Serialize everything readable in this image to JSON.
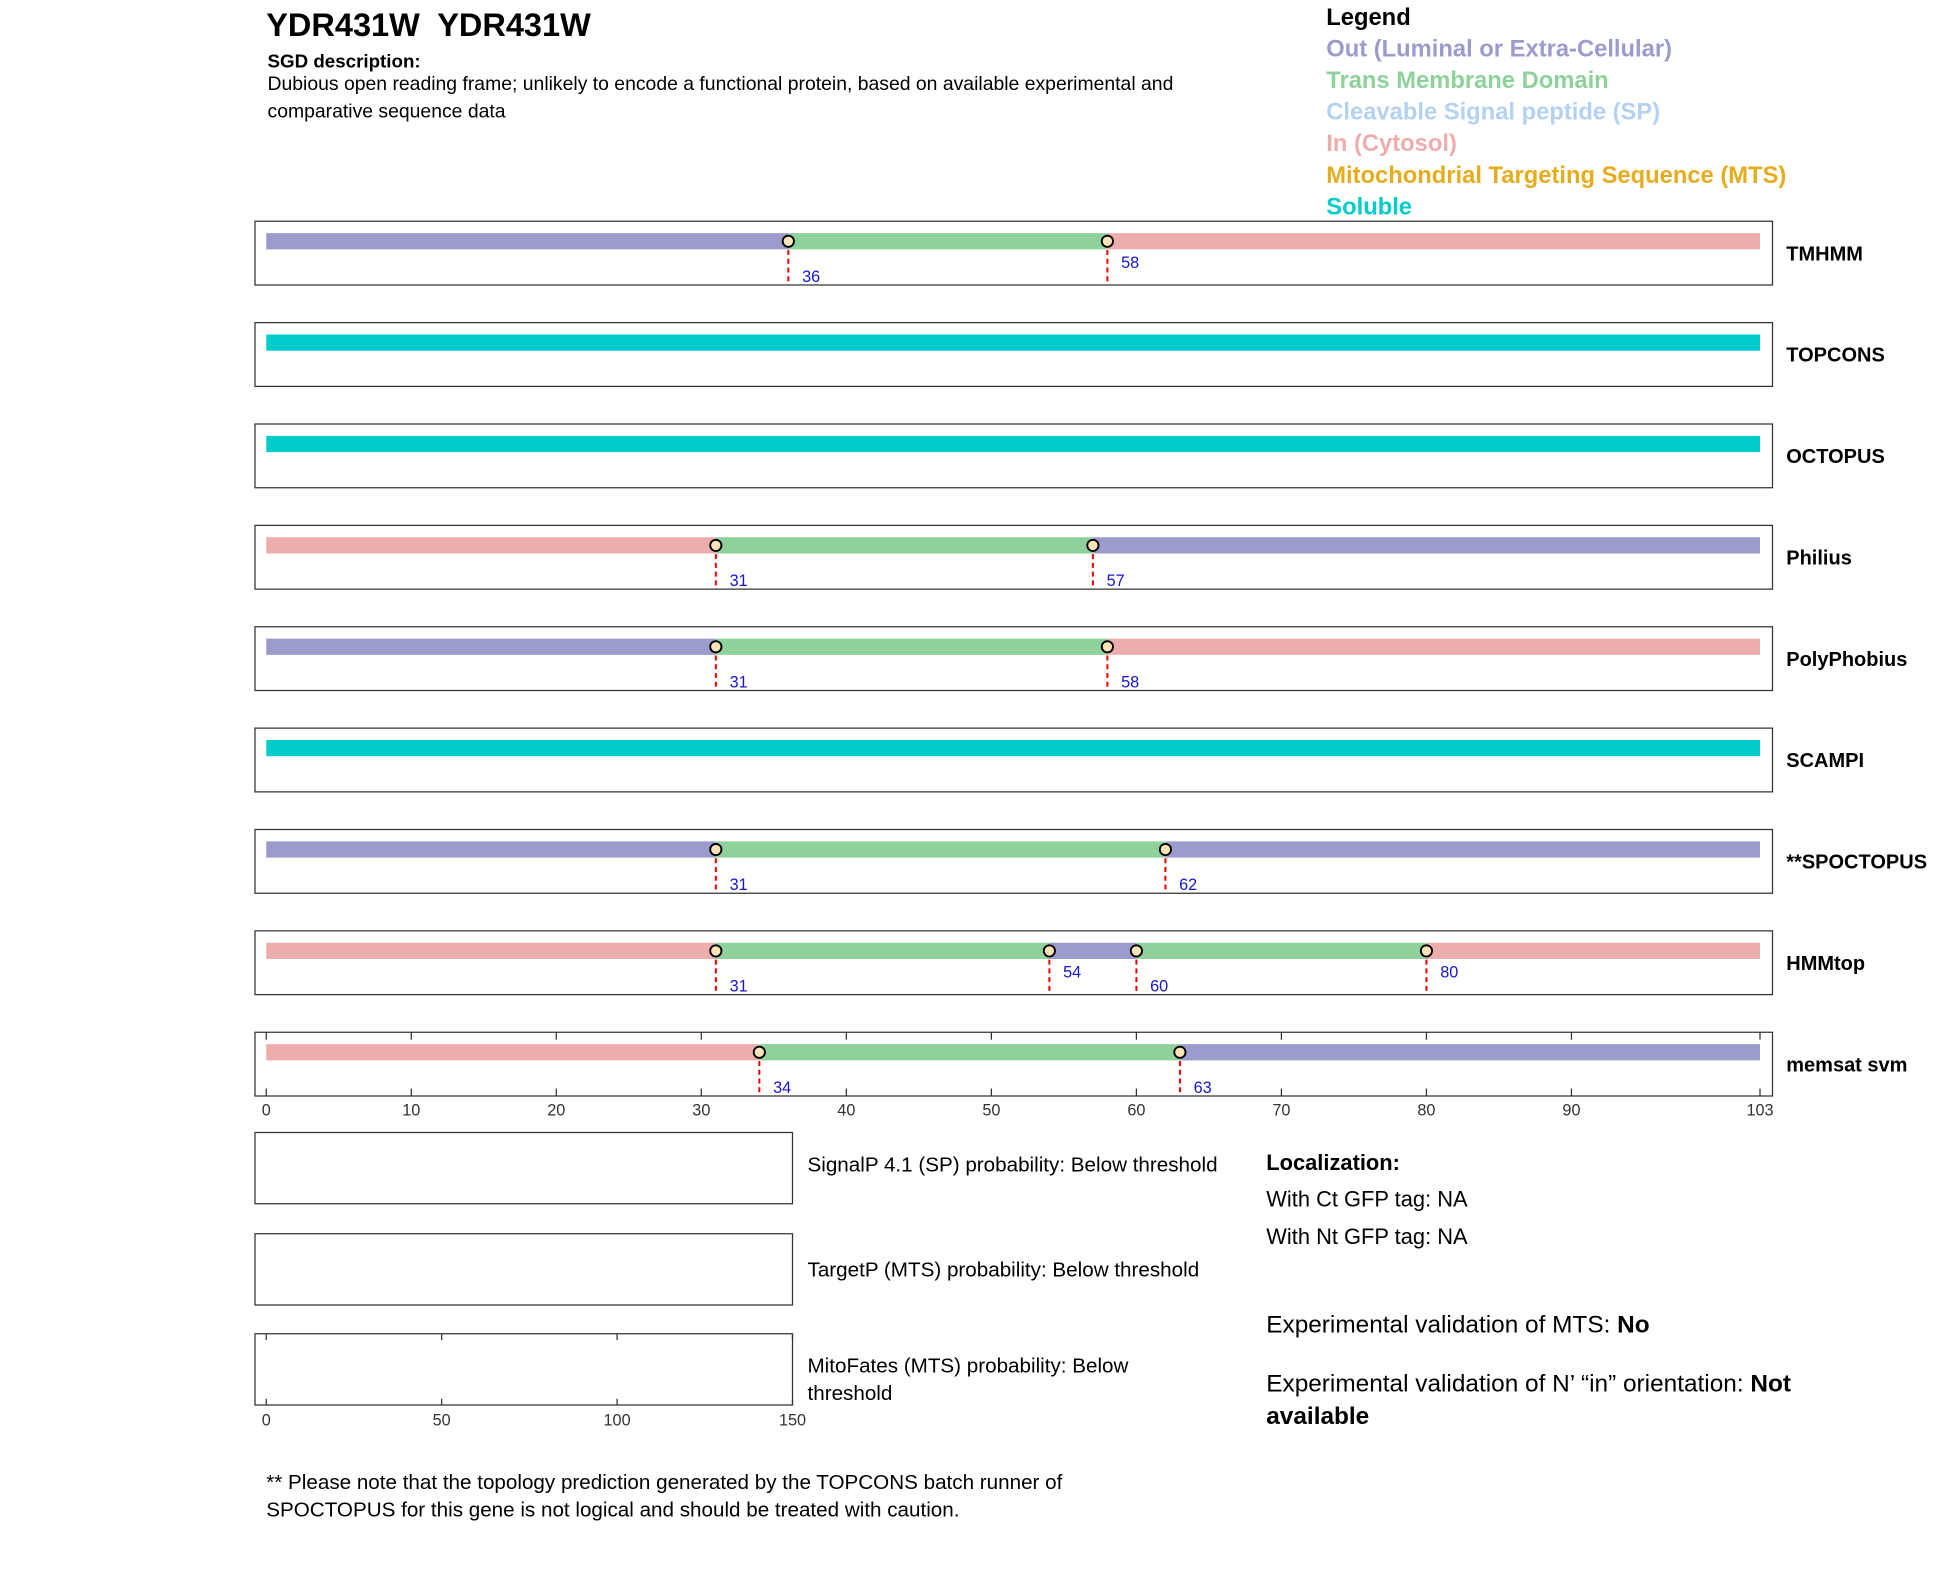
{
  "chart_data": {
    "type": "topology",
    "title": "YDR431W  YDR431W",
    "subtitle": "SGD description:",
    "description": "Dubious open reading frame; unlikely to encode a functional protein, based on available experimental and comparative sequence data",
    "legend_title": "Legend",
    "legend": [
      {
        "name": "Out (Luminal or Extra-Cellular)",
        "color": "#9b9bcc"
      },
      {
        "name": "Trans Membrane Domain",
        "color": "#8fd19a"
      },
      {
        "name": "Cleavable Signal peptide (SP)",
        "color": "#b3d1f0"
      },
      {
        "name": "In (Cytosol)",
        "color": "#eeadad"
      },
      {
        "name": "Mitochondrial Targeting Sequence (MTS)",
        "color": "#e6ac1e"
      },
      {
        "name": "Soluble",
        "color": "#00cccc"
      }
    ],
    "tracks": [
      {
        "name": "TMHMM",
        "segments": [
          0,
          1,
          3
        ],
        "boundaries": [
          36,
          58
        ]
      },
      {
        "name": "TOPCONS",
        "segments": [
          5
        ],
        "boundaries": []
      },
      {
        "name": "OCTOPUS",
        "segments": [
          5
        ],
        "boundaries": []
      },
      {
        "name": "Philius",
        "segments": [
          3,
          1,
          0
        ],
        "boundaries": [
          31,
          57
        ]
      },
      {
        "name": "PolyPhobius",
        "segments": [
          0,
          1,
          3
        ],
        "boundaries": [
          31,
          58
        ]
      },
      {
        "name": "SCAMPI",
        "segments": [
          5
        ],
        "boundaries": []
      },
      {
        "name": "**SPOCTOPUS",
        "segments": [
          0,
          1,
          0
        ],
        "boundaries": [
          31,
          62
        ]
      },
      {
        "name": "HMMtop",
        "segments": [
          3,
          1,
          0,
          1,
          3
        ],
        "boundaries": [
          31,
          54,
          60,
          80
        ]
      },
      {
        "name": "memsat svm",
        "segments": [
          3,
          1,
          0
        ],
        "boundaries": [
          34,
          63
        ]
      }
    ],
    "xlim": [
      0,
      103
    ],
    "xticks": [
      0,
      10,
      20,
      30,
      40,
      50,
      60,
      70,
      80,
      90,
      103
    ],
    "probability_panels": {
      "xlim": [
        0,
        150
      ],
      "xticks": [
        0,
        50,
        100,
        150
      ],
      "labels": [
        "SignalP 4.1 (SP) probability: Below threshold",
        "TargetP (MTS) probability: Below threshold",
        "MitoFates (MTS) probability: Below threshold"
      ]
    }
  },
  "localization": {
    "title": "Localization:",
    "lines": [
      "With Ct GFP tag: NA",
      "With Nt GFP tag: NA"
    ]
  },
  "validation": [
    {
      "label": "Experimental validation of MTS: ",
      "value": "No"
    },
    {
      "label": "Experimental validation of N’ “in” orientation: ",
      "value": "Not available"
    }
  ],
  "footnote": "** Please note that the topology prediction generated by the TOPCONS batch runner of SPOCTOPUS for this gene is not logical and should be treated with caution."
}
